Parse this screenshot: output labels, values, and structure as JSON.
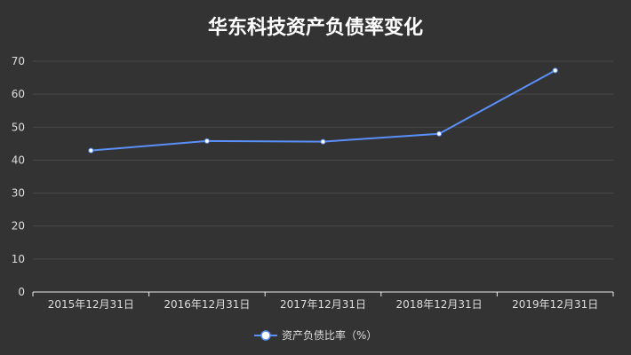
{
  "chart_data": {
    "type": "line",
    "title": "华东科技资产负债率变化",
    "categories": [
      "2015年12月31日",
      "2016年12月31日",
      "2017年12月31日",
      "2018年12月31日",
      "2019年12月31日"
    ],
    "series": [
      {
        "name": "资产负债比率（%）",
        "values": [
          42.9,
          45.8,
          45.6,
          48.0,
          67.2
        ],
        "color": "#5b8ff9"
      }
    ],
    "yticks": [
      0,
      10,
      20,
      30,
      40,
      50,
      60,
      70
    ],
    "ylim": [
      0,
      70
    ],
    "grid": true,
    "legend_position": "bottom",
    "background": "#333333"
  }
}
